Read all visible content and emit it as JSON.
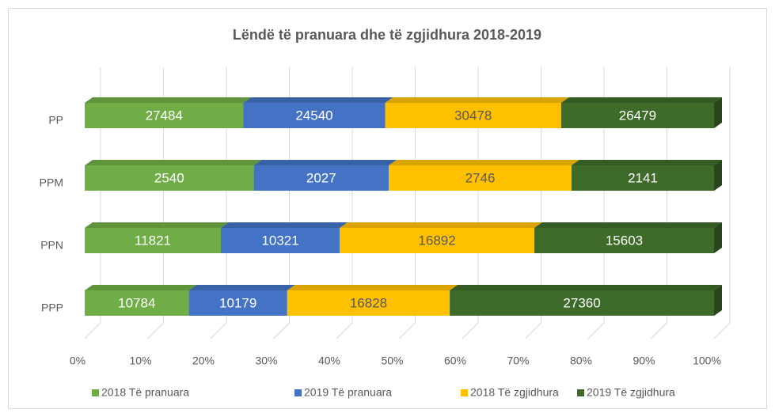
{
  "chart_data": {
    "type": "bar",
    "orientation": "horizontal",
    "stacked": "percent",
    "title": "Lëndë të pranuara dhe të zgjidhura 2018-2019",
    "categories": [
      "PP",
      "PPM",
      "PPN",
      "PPP"
    ],
    "series": [
      {
        "name": "2018 Të pranuara",
        "color": "#70ad47",
        "label_color": "#ffffff",
        "values": [
          27484,
          2540,
          11821,
          10784
        ]
      },
      {
        "name": "2019 Të pranuara",
        "color": "#4472c4",
        "label_color": "#ffffff",
        "values": [
          24540,
          2027,
          10321,
          10179
        ]
      },
      {
        "name": "2018 Të zgjidhura",
        "color": "#ffc000",
        "label_color": "#595959",
        "values": [
          30478,
          2746,
          16892,
          16828
        ]
      },
      {
        "name": "2019 Të zgjidhura",
        "color": "#3e6b2a",
        "label_color": "#ffffff",
        "values": [
          26479,
          2141,
          15603,
          27360
        ]
      }
    ],
    "xlim": [
      0,
      100
    ],
    "xticks": [
      {
        "value": 0,
        "label": "0%"
      },
      {
        "value": 10,
        "label": "10%"
      },
      {
        "value": 20,
        "label": "20%"
      },
      {
        "value": 30,
        "label": "30%"
      },
      {
        "value": 40,
        "label": "40%"
      },
      {
        "value": 50,
        "label": "50%"
      },
      {
        "value": 60,
        "label": "60%"
      },
      {
        "value": 70,
        "label": "70%"
      },
      {
        "value": 80,
        "label": "80%"
      },
      {
        "value": 90,
        "label": "90%"
      },
      {
        "value": 100,
        "label": "100%"
      }
    ],
    "grid": true,
    "legend": "bottom"
  }
}
